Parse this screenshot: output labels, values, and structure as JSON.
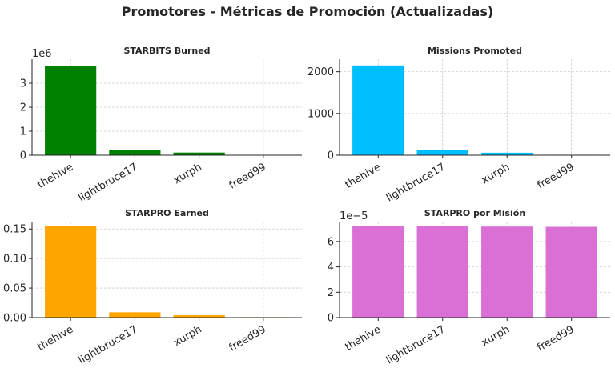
{
  "figure": {
    "title": "Promotores - Métricas de Promoción (Actualizadas)"
  },
  "chart_data": [
    {
      "type": "bar",
      "title": "STARBITS Burned",
      "categories": [
        "thehive",
        "lightbruce17",
        "xurph",
        "freed99"
      ],
      "values": [
        3700000,
        220000,
        110000,
        15000
      ],
      "color": "#008000",
      "ylim": [
        0,
        4000000
      ],
      "yticks": [
        0,
        1,
        2,
        3
      ],
      "yscale": 1000000,
      "offset_label": "1e6",
      "grid": true
    },
    {
      "type": "bar",
      "title": "Missions Promoted",
      "categories": [
        "thehive",
        "lightbruce17",
        "xurph",
        "freed99"
      ],
      "values": [
        2150,
        130,
        60,
        10
      ],
      "color": "#00bfff",
      "ylim": [
        0,
        2300
      ],
      "yticks": [
        0,
        1000,
        2000
      ],
      "yscale": 1,
      "offset_label": "",
      "grid": true
    },
    {
      "type": "bar",
      "title": "STARPRO Earned",
      "categories": [
        "thehive",
        "lightbruce17",
        "xurph",
        "freed99"
      ],
      "values": [
        0.155,
        0.009,
        0.004,
        0.0008
      ],
      "color": "#ffa500",
      "ylim": [
        0,
        0.1625
      ],
      "yticks": [
        0.0,
        0.05,
        0.1,
        0.15
      ],
      "ytick_labels": [
        "0.00",
        "0.05",
        "0.10",
        "0.15"
      ],
      "yscale": 1,
      "offset_label": "",
      "grid": true
    },
    {
      "type": "bar",
      "title": "STARPRO por Misión",
      "categories": [
        "thehive",
        "lightbruce17",
        "xurph",
        "freed99"
      ],
      "values": [
        7.21e-05,
        7.21e-05,
        7.18e-05,
        7.16e-05
      ],
      "color": "#da70d6",
      "ylim": [
        0,
        7.57e-05
      ],
      "yticks": [
        0,
        2,
        4,
        6
      ],
      "yscale": 1e-05,
      "offset_label": "1e−5",
      "grid": true
    }
  ]
}
